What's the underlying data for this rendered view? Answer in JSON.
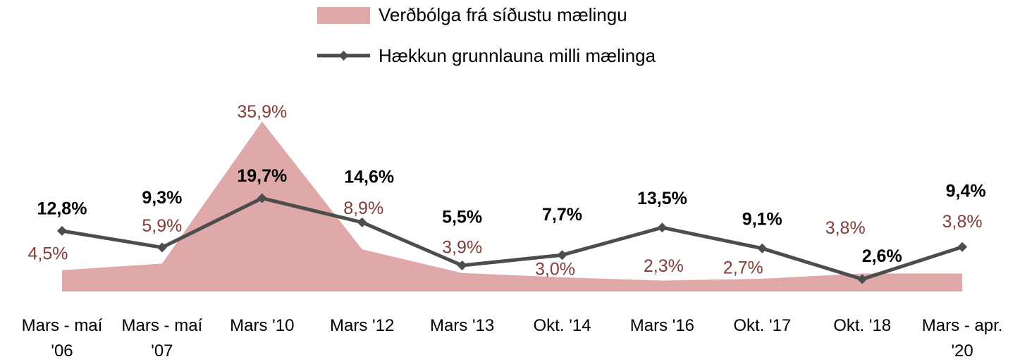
{
  "chart_data": {
    "type": "area_line",
    "categories": [
      "Mars - maí '06",
      "Mars - maí '07",
      "Mars '10",
      "Mars '12",
      "Mars '13",
      "Okt. '14",
      "Mars '16",
      "Okt. '17",
      "Okt. '18",
      "Mars - apr. '20"
    ],
    "series": [
      {
        "name": "Verðbólga frá síðustu mælingu",
        "type": "area",
        "color": "#e0a9a9",
        "label_color": "#843c39",
        "values": [
          4.5,
          5.9,
          35.9,
          8.9,
          3.9,
          3.0,
          2.3,
          2.7,
          3.8,
          3.8
        ],
        "value_labels": [
          "4,5%",
          "5,9%",
          "35,9%",
          "8,9%",
          "3,9%",
          "3,0%",
          "2,3%",
          "2,7%",
          "3,8%",
          "3,8%"
        ]
      },
      {
        "name": "Hækkun grunnlauna milli mælinga",
        "type": "line",
        "color": "#4d4d4d",
        "label_color": "#000000",
        "values": [
          12.8,
          9.3,
          19.7,
          14.6,
          5.5,
          7.7,
          13.5,
          9.1,
          2.6,
          9.4
        ],
        "value_labels": [
          "12,8%",
          "9,3%",
          "19,7%",
          "14,6%",
          "5,5%",
          "7,7%",
          "13,5%",
          "9,1%",
          "2,6%",
          "9,4%"
        ]
      }
    ],
    "ylim": [
      0,
      40
    ],
    "legend": "top"
  }
}
